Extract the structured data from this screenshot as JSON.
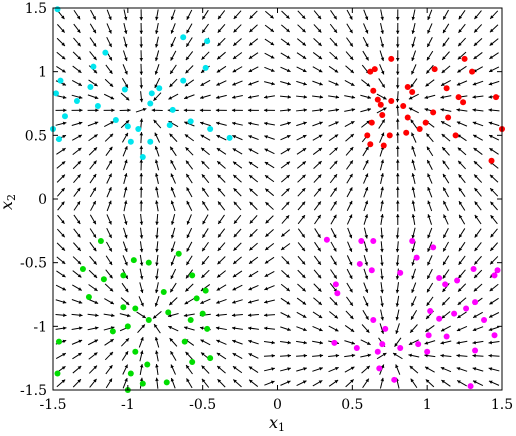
{
  "chart_data": {
    "type": "scatter",
    "plot_kind": "vector-field",
    "xlabel": "x",
    "xlabel_sub": "1",
    "ylabel": "x",
    "ylabel_sub": "2",
    "xlim": [
      -1.5,
      1.5
    ],
    "ylim": [
      -1.5,
      1.5
    ],
    "x_ticks": [
      -1.5,
      -1,
      -0.5,
      0,
      0.5,
      1,
      1.5
    ],
    "x_tick_labels": [
      "-1.5",
      "-1",
      "-0.5",
      "0",
      "0.5",
      "1",
      "1.5"
    ],
    "y_ticks": [
      -1.5,
      -1,
      -0.5,
      0,
      0.5,
      1,
      1.5
    ],
    "y_tick_labels": [
      "-1.5",
      "-1",
      "-0.5",
      "0",
      "0.5",
      "1",
      "1.5"
    ],
    "grid": false,
    "field": {
      "description": "quiver plot of black arrows flowing toward four stable equilibria",
      "color": "#000000",
      "attractors": [
        {
          "x": -0.9,
          "y": 0.7
        },
        {
          "x": 0.8,
          "y": 0.75
        },
        {
          "x": -0.85,
          "y": -0.95
        },
        {
          "x": 0.75,
          "y": -1.2
        }
      ],
      "grid_n": 28
    },
    "series": [
      {
        "color": "#00e5ee",
        "points": [
          [
            -1.47,
            1.49
          ],
          [
            -1.25,
            0.88
          ],
          [
            -1.02,
            0.86
          ],
          [
            -0.84,
            0.83
          ],
          [
            -0.79,
            0.87
          ],
          [
            -0.63,
            0.93
          ],
          [
            -0.48,
            1.03
          ],
          [
            -0.63,
            1.27
          ],
          [
            -0.47,
            1.24
          ],
          [
            -1.15,
            1.15
          ],
          [
            -1.23,
            1.04
          ],
          [
            -1.45,
            0.93
          ],
          [
            -1.48,
            0.83
          ],
          [
            -1.34,
            0.77
          ],
          [
            -1.2,
            0.73
          ],
          [
            -1.08,
            0.62
          ],
          [
            -1.0,
            0.57
          ],
          [
            -0.85,
            0.45
          ],
          [
            -0.72,
            0.58
          ],
          [
            -0.58,
            0.61
          ],
          [
            -0.93,
            0.55
          ],
          [
            -1.5,
            0.55
          ],
          [
            -1.46,
            0.47
          ],
          [
            -0.98,
            0.45
          ],
          [
            -0.9,
            0.33
          ],
          [
            -0.45,
            0.55
          ],
          [
            -0.32,
            0.48
          ],
          [
            -0.85,
            0.75
          ],
          [
            -1.42,
            0.65
          ],
          [
            -0.7,
            0.7
          ]
        ]
      },
      {
        "color": "#ff0000",
        "points": [
          [
            0.62,
            1.0
          ],
          [
            0.65,
            1.02
          ],
          [
            0.64,
            0.85
          ],
          [
            0.67,
            0.78
          ],
          [
            0.76,
            0.77
          ],
          [
            0.69,
            0.74
          ],
          [
            0.87,
            0.88
          ],
          [
            0.9,
            0.84
          ],
          [
            0.84,
            0.73
          ],
          [
            0.87,
            0.64
          ],
          [
            0.7,
            0.66
          ],
          [
            0.63,
            0.6
          ],
          [
            0.75,
            0.5
          ],
          [
            0.86,
            0.52
          ],
          [
            0.76,
            1.1
          ],
          [
            0.95,
            0.55
          ],
          [
            1.13,
            0.87
          ],
          [
            1.21,
            0.8
          ],
          [
            1.24,
            0.76
          ],
          [
            1.3,
            1.0
          ],
          [
            1.46,
            0.8
          ],
          [
            1.5,
            0.55
          ],
          [
            1.43,
            0.3
          ],
          [
            1.19,
            0.5
          ],
          [
            1.14,
            0.64
          ],
          [
            1.04,
            0.68
          ],
          [
            0.99,
            0.6
          ],
          [
            0.62,
            0.43
          ],
          [
            0.71,
            0.42
          ],
          [
            1.05,
            1.02
          ],
          [
            1.25,
            1.1
          ],
          [
            0.6,
            0.5
          ]
        ]
      },
      {
        "color": "#00dd00",
        "points": [
          [
            -1.18,
            -0.33
          ],
          [
            -0.66,
            -0.43
          ],
          [
            -0.86,
            -0.5
          ],
          [
            -0.96,
            -0.48
          ],
          [
            -1.03,
            -0.6
          ],
          [
            -1.16,
            -0.63
          ],
          [
            -1.26,
            -0.77
          ],
          [
            -1.03,
            -0.85
          ],
          [
            -0.57,
            -0.6
          ],
          [
            -0.48,
            -0.72
          ],
          [
            -0.54,
            -0.78
          ],
          [
            -0.76,
            -0.73
          ],
          [
            -0.95,
            -0.86
          ],
          [
            -0.86,
            -0.95
          ],
          [
            -0.73,
            -0.89
          ],
          [
            -1.0,
            -1.0
          ],
          [
            -1.1,
            -1.04
          ],
          [
            -0.58,
            -0.95
          ],
          [
            -0.5,
            -0.9
          ],
          [
            -0.47,
            -1.02
          ],
          [
            -0.62,
            -1.12
          ],
          [
            -0.95,
            -1.2
          ],
          [
            -0.87,
            -1.3
          ],
          [
            -0.98,
            -1.37
          ],
          [
            -0.9,
            -1.45
          ],
          [
            -0.57,
            -1.28
          ],
          [
            -0.74,
            -1.44
          ],
          [
            -1.0,
            -1.5
          ],
          [
            -1.47,
            -1.37
          ],
          [
            -1.46,
            -1.12
          ],
          [
            -0.45,
            -1.25
          ],
          [
            -1.3,
            -0.55
          ]
        ]
      },
      {
        "color": "#ff00ff",
        "points": [
          [
            0.33,
            -0.32
          ],
          [
            0.56,
            -0.33
          ],
          [
            0.64,
            -0.33
          ],
          [
            0.9,
            -0.33
          ],
          [
            1.04,
            -0.38
          ],
          [
            0.93,
            -0.46
          ],
          [
            0.55,
            -0.51
          ],
          [
            0.63,
            -0.56
          ],
          [
            0.82,
            -0.58
          ],
          [
            1.08,
            -0.62
          ],
          [
            1.12,
            -0.67
          ],
          [
            1.2,
            -0.64
          ],
          [
            1.31,
            -0.55
          ],
          [
            1.47,
            -0.56
          ],
          [
            1.45,
            -0.6
          ],
          [
            1.32,
            -0.81
          ],
          [
            1.26,
            -0.86
          ],
          [
            1.18,
            -0.9
          ],
          [
            1.08,
            -0.94
          ],
          [
            1.02,
            -0.88
          ],
          [
            0.39,
            -0.67
          ],
          [
            0.4,
            -0.74
          ],
          [
            0.64,
            -0.95
          ],
          [
            0.72,
            -1.02
          ],
          [
            0.82,
            -1.17
          ],
          [
            0.7,
            -1.14
          ],
          [
            0.94,
            -1.14
          ],
          [
            1.01,
            -1.07
          ],
          [
            1.13,
            -1.08
          ],
          [
            1.0,
            -1.2
          ],
          [
            0.38,
            -1.13
          ],
          [
            0.53,
            -1.17
          ],
          [
            0.67,
            -1.2
          ],
          [
            1.38,
            -0.95
          ],
          [
            1.45,
            -1.07
          ],
          [
            1.32,
            -1.19
          ],
          [
            1.29,
            -1.47
          ],
          [
            0.68,
            -1.33
          ],
          [
            0.78,
            -1.42
          ]
        ]
      }
    ]
  }
}
